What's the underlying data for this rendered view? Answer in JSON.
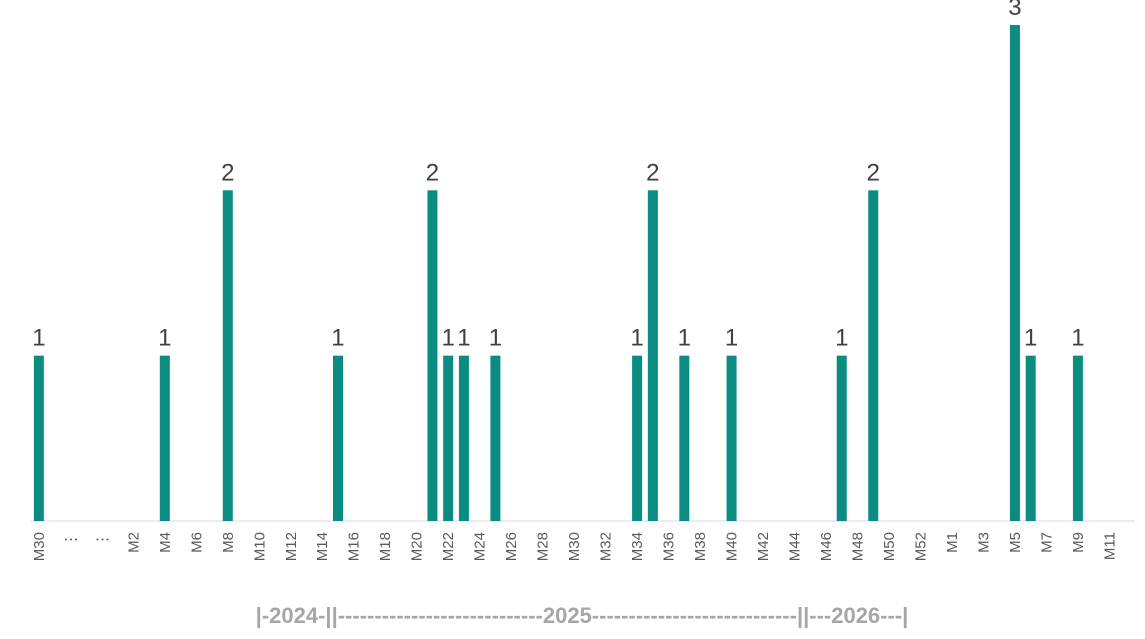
{
  "chart_data": {
    "type": "bar",
    "categories": [
      "M30",
      null,
      "⋮",
      null,
      "⋮",
      null,
      "M2",
      null,
      "M4",
      null,
      "M6",
      null,
      "M8",
      null,
      "M10",
      null,
      "M12",
      null,
      "M14",
      null,
      "M16",
      null,
      "M18",
      null,
      "M20",
      null,
      "M22",
      null,
      "M24",
      null,
      "M26",
      null,
      "M28",
      null,
      "M30",
      null,
      "M32",
      null,
      "M34",
      null,
      "M36",
      null,
      "M38",
      null,
      "M40",
      null,
      "M42",
      null,
      "M44",
      null,
      "M46",
      null,
      "M48",
      null,
      "M50",
      null,
      "M52",
      null,
      "M1",
      null,
      "M3",
      null,
      "M5",
      null,
      "M7",
      null,
      "M9",
      null,
      "M11",
      null
    ],
    "values": [
      1,
      null,
      null,
      null,
      null,
      null,
      null,
      null,
      1,
      null,
      null,
      null,
      2,
      null,
      null,
      null,
      null,
      null,
      null,
      1,
      null,
      null,
      null,
      null,
      null,
      2,
      1,
      1,
      null,
      1,
      null,
      null,
      null,
      null,
      null,
      null,
      null,
      null,
      1,
      2,
      null,
      1,
      null,
      null,
      1,
      null,
      null,
      null,
      null,
      null,
      null,
      1,
      null,
      2,
      null,
      null,
      null,
      null,
      null,
      null,
      null,
      null,
      3,
      1,
      null,
      null,
      1,
      null,
      null,
      null
    ],
    "color": "#0a8c80",
    "ylim": [
      0,
      3
    ],
    "year_axis": "|-2024-||----------------------------2025----------------------------||---2026---|"
  }
}
